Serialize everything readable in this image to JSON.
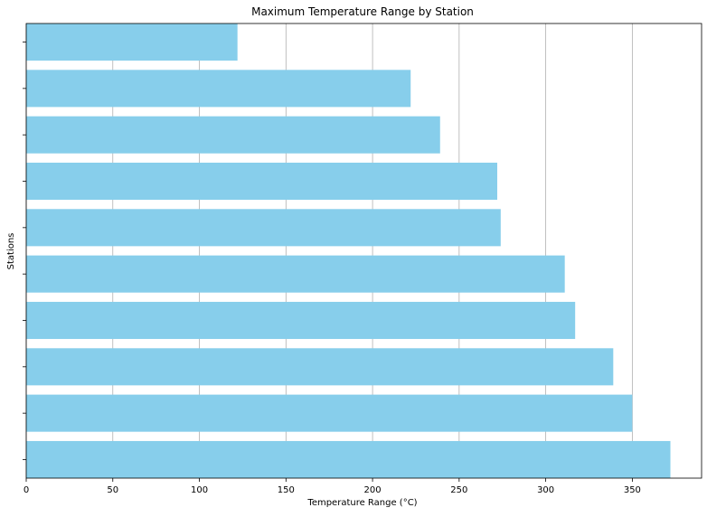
{
  "chart_data": {
    "type": "bar",
    "orientation": "horizontal",
    "title": "Maximum Temperature Range by Station",
    "xlabel": "Temperature Range (°C)",
    "ylabel": "Stations",
    "xlim": [
      0,
      390
    ],
    "xticks": [
      0,
      50,
      100,
      150,
      200,
      250,
      300,
      350
    ],
    "grid": "x",
    "values": [
      372,
      350,
      339,
      317,
      311,
      274,
      272,
      239,
      222,
      122
    ],
    "colors": {
      "bar": "#87CEEB",
      "grid": "#b0b0b0",
      "axis": "#000000"
    }
  }
}
